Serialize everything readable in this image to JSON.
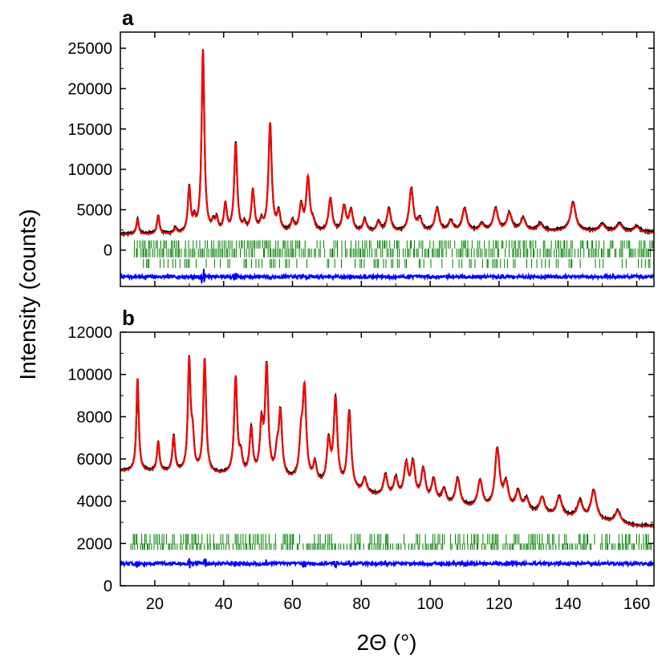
{
  "chart_data": [
    {
      "panel": "a",
      "type": "line",
      "xlabel": "2Θ (°)",
      "ylabel": "Intensity (counts)",
      "xlim": [
        10,
        165
      ],
      "ylim": [
        -4500,
        27000
      ],
      "y_ticks": [
        0,
        5000,
        10000,
        15000,
        20000,
        25000
      ],
      "x_ticks": [
        20,
        40,
        60,
        80,
        100,
        120,
        140,
        160
      ],
      "series": [
        {
          "role": "observed",
          "color": "#000000",
          "baseline": [
            [
              10,
              1900
            ],
            [
              40,
              1900
            ],
            [
              60,
              2000
            ],
            [
              100,
              2100
            ],
            [
              140,
              2300
            ],
            [
              165,
              2100
            ]
          ],
          "peaks": [
            [
              15,
              1800
            ],
            [
              21,
              2200
            ],
            [
              26,
              700
            ],
            [
              30,
              5600
            ],
            [
              31.5,
              1400
            ],
            [
              34,
              22600
            ],
            [
              37,
              1100
            ],
            [
              38,
              1500
            ],
            [
              40.5,
              3400
            ],
            [
              43.5,
              11000
            ],
            [
              46,
              900
            ],
            [
              48.5,
              5100
            ],
            [
              51,
              1200
            ],
            [
              53.5,
              13400
            ],
            [
              56,
              2300
            ],
            [
              60,
              1300
            ],
            [
              62.5,
              3200
            ],
            [
              64.5,
              6600
            ],
            [
              66,
              1000
            ],
            [
              71,
              4100
            ],
            [
              75,
              3100
            ],
            [
              77,
              2600
            ],
            [
              81,
              1500
            ],
            [
              85,
              1200
            ],
            [
              88,
              2800
            ],
            [
              94.5,
              5300
            ],
            [
              97,
              1500
            ],
            [
              102,
              2900
            ],
            [
              106,
              1300
            ],
            [
              110,
              2900
            ],
            [
              115,
              900
            ],
            [
              119,
              2800
            ],
            [
              123,
              2200
            ],
            [
              127,
              1600
            ],
            [
              132,
              900
            ],
            [
              141.5,
              3500
            ],
            [
              150,
              900
            ],
            [
              155,
              1000
            ],
            [
              160,
              700
            ]
          ]
        },
        {
          "role": "calculated",
          "color": "#ff0000"
        },
        {
          "role": "difference",
          "color": "#0000ff",
          "offset": -3300
        }
      ],
      "reflection_markers": {
        "color": "#008000",
        "rows": [
          {
            "y_top": 1200,
            "y_bottom": 200,
            "first": 13,
            "last": 165,
            "density": 0.55
          },
          {
            "y_top": 200,
            "y_bottom": -900,
            "first": 14,
            "last": 165,
            "density": 0.75
          },
          {
            "y_top": -1100,
            "y_bottom": -2200,
            "first": 16,
            "last": 165,
            "density": 0.35
          }
        ]
      }
    },
    {
      "panel": "b",
      "type": "line",
      "xlabel": "2Θ (°)",
      "ylabel": "Intensity (counts)",
      "xlim": [
        10,
        165
      ],
      "ylim": [
        0,
        12000
      ],
      "y_ticks": [
        0,
        2000,
        4000,
        6000,
        8000,
        10000,
        12000
      ],
      "x_ticks": [
        20,
        40,
        60,
        80,
        100,
        120,
        140,
        160
      ],
      "series": [
        {
          "role": "observed",
          "color": "#000000",
          "baseline": [
            [
              10,
              5400
            ],
            [
              20,
              5350
            ],
            [
              40,
              5200
            ],
            [
              60,
              4900
            ],
            [
              80,
              4300
            ],
            [
              100,
              3800
            ],
            [
              120,
              3500
            ],
            [
              140,
              3200
            ],
            [
              160,
              2800
            ],
            [
              165,
              2800
            ]
          ],
          "peaks": [
            [
              15,
              4400
            ],
            [
              21,
              1400
            ],
            [
              25.5,
              1700
            ],
            [
              30,
              5200
            ],
            [
              31,
              1500
            ],
            [
              34.5,
              5400
            ],
            [
              43.5,
              4600
            ],
            [
              45,
              800
            ],
            [
              48,
              2200
            ],
            [
              51,
              2300
            ],
            [
              52.5,
              5100
            ],
            [
              55.5,
              1000
            ],
            [
              56.5,
              3000
            ],
            [
              62.5,
              1800
            ],
            [
              63.5,
              4200
            ],
            [
              66.5,
              900
            ],
            [
              70.5,
              2000
            ],
            [
              72.5,
              4100
            ],
            [
              76.5,
              3700
            ],
            [
              81,
              700
            ],
            [
              87,
              1000
            ],
            [
              90,
              900
            ],
            [
              93,
              1600
            ],
            [
              95,
              1700
            ],
            [
              98,
              1500
            ],
            [
              101,
              1100
            ],
            [
              104,
              700
            ],
            [
              108,
              1300
            ],
            [
              114.5,
              1300
            ],
            [
              119.5,
              2800
            ],
            [
              122,
              1200
            ],
            [
              125.5,
              900
            ],
            [
              128,
              600
            ],
            [
              132.5,
              800
            ],
            [
              137.5,
              900
            ],
            [
              143.5,
              800
            ],
            [
              147.5,
              1400
            ],
            [
              154.5,
              600
            ]
          ]
        },
        {
          "role": "calculated",
          "color": "#ff0000"
        },
        {
          "role": "difference",
          "color": "#0000ff",
          "offset": 1050
        }
      ],
      "reflection_markers": {
        "color": "#008000",
        "rows": [
          {
            "y_top": 2450,
            "y_bottom": 1950,
            "first": 13,
            "last": 165,
            "density": 0.45
          },
          {
            "y_top": 2000,
            "y_bottom": 1700,
            "first": 13,
            "last": 165,
            "density": 0.7
          }
        ]
      }
    }
  ]
}
